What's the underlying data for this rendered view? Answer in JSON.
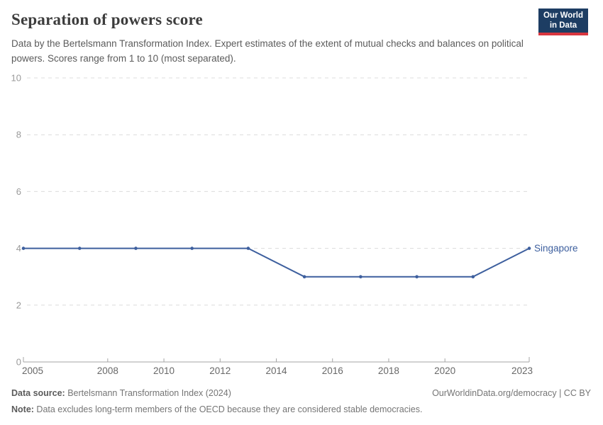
{
  "header": {
    "title": "Separation of powers score",
    "subtitle": "Data by the Bertelsmann Transformation Index. Expert estimates of the extent of mutual checks and balances on political powers. Scores range from 1 to 10 (most separated).",
    "logo": {
      "line1": "Our World",
      "line2": "in Data",
      "bg_color": "#1d3d63",
      "stripe_color": "#d8353f"
    }
  },
  "chart_data": {
    "type": "line",
    "title": "Separation of powers score",
    "xlabel": "",
    "ylabel": "",
    "xlim": [
      2005,
      2023
    ],
    "ylim": [
      0,
      10
    ],
    "yticks": [
      0,
      2,
      4,
      6,
      8,
      10
    ],
    "xticks": [
      2005,
      2008,
      2010,
      2012,
      2014,
      2016,
      2018,
      2020,
      2023
    ],
    "grid": "horizontal-dashed",
    "legend_position": "end-of-line",
    "grid_color": "#dcdcdc",
    "axis_color": "#a5a5a5",
    "ytick_label_color": "#9a9a9a",
    "xtick_label_color": "#686868",
    "series": [
      {
        "name": "Singapore",
        "color": "#3d5f9e",
        "x": [
          2005,
          2007,
          2009,
          2011,
          2013,
          2015,
          2017,
          2019,
          2021,
          2023
        ],
        "values": [
          4,
          4,
          4,
          4,
          4,
          3,
          3,
          3,
          3,
          4
        ]
      }
    ]
  },
  "footer": {
    "source_label": "Data source:",
    "source_value": " Bertelsmann Transformation Index (2024)",
    "rights": "OurWorldinData.org/democracy | CC BY",
    "note_label": "Note:",
    "note_value": " Data excludes long-term members of the OECD because they are considered stable democracies."
  }
}
